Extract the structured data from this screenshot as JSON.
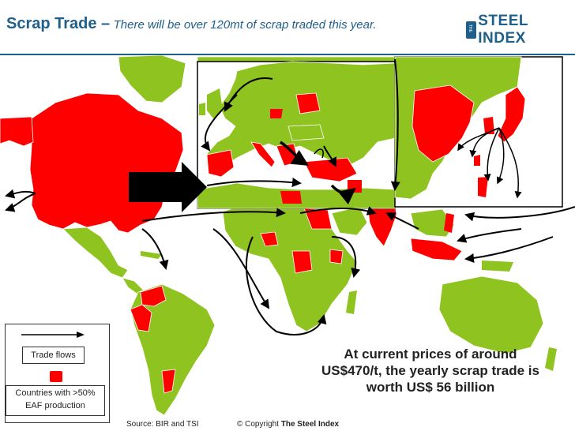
{
  "slide": {
    "title": "Scrap Trade –",
    "subtitle": "There will be over 120mt of scrap traded this year."
  },
  "logo": {
    "small": "THE",
    "text": "STEEL INDEX"
  },
  "legend": {
    "flow_label": "Trade flows",
    "red_label": "Countries with >50% EAF production"
  },
  "callout": "At current prices of around US$470/t, the yearly scrap trade is worth US$ 56 billion",
  "footer": {
    "source": "Source: BIR and TSI",
    "copyright_prefix": "© Copyright",
    "copyright_owner": "The Steel Index"
  },
  "colors": {
    "title": "#1f5f8b",
    "eaf_country": "#ff0000",
    "other_land": "#8fc31f",
    "ocean": "#ffffff",
    "flow_arrow": "#000000"
  }
}
